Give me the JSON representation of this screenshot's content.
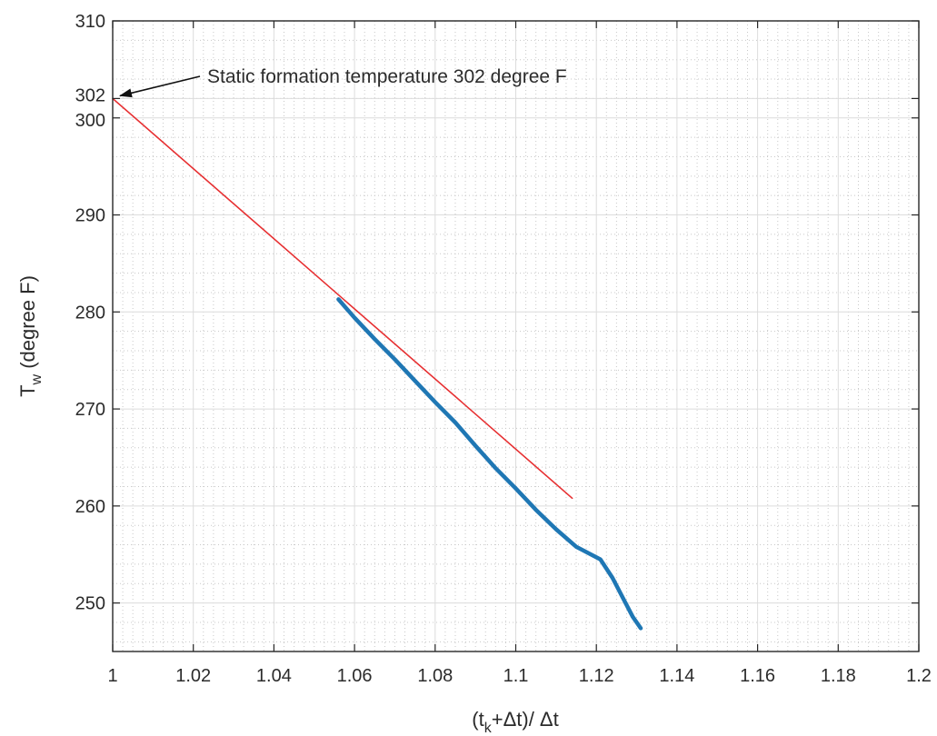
{
  "chart_data": {
    "type": "line",
    "xlabel": {
      "pre": "(t",
      "sub": "k",
      "post": "+Δt)/ Δt"
    },
    "ylabel": {
      "pre": "T",
      "sub": "w",
      "post": " (degree F)"
    },
    "xlim": [
      1,
      1.2
    ],
    "ylim": [
      245,
      310
    ],
    "xticks": [
      1,
      1.02,
      1.04,
      1.06,
      1.08,
      1.1,
      1.12,
      1.14,
      1.16,
      1.18,
      1.2
    ],
    "xtick_labels": [
      "1",
      "1.02",
      "1.04",
      "1.06",
      "1.08",
      "1.1",
      "1.12",
      "1.14",
      "1.16",
      "1.18",
      "1.2"
    ],
    "yticks": [
      250,
      260,
      270,
      280,
      290,
      300,
      302,
      310
    ],
    "ytick_labels": [
      "250",
      "260",
      "270",
      "280",
      "290",
      "300",
      "302",
      "310"
    ],
    "grid": true,
    "minor_grid": true,
    "series": [
      {
        "color": "#1f77b4",
        "x": [
          1.056,
          1.06,
          1.065,
          1.07,
          1.075,
          1.08,
          1.085,
          1.09,
          1.095,
          1.1,
          1.105,
          1.11,
          1.115,
          1.121,
          1.124,
          1.127,
          1.129,
          1.131
        ],
        "y": [
          281.3,
          279.4,
          277.2,
          275.1,
          272.9,
          270.7,
          268.6,
          266.2,
          263.9,
          261.8,
          259.6,
          257.6,
          255.8,
          254.5,
          252.6,
          250.2,
          248.6,
          247.4
        ]
      },
      {
        "color": "#e41a1c",
        "x": [
          1.0,
          1.114
        ],
        "y": [
          302.0,
          260.8
        ]
      }
    ],
    "annotations": [
      {
        "text": "Static formation temperature 302 degree F",
        "x": 1.0,
        "y": 302
      }
    ]
  }
}
